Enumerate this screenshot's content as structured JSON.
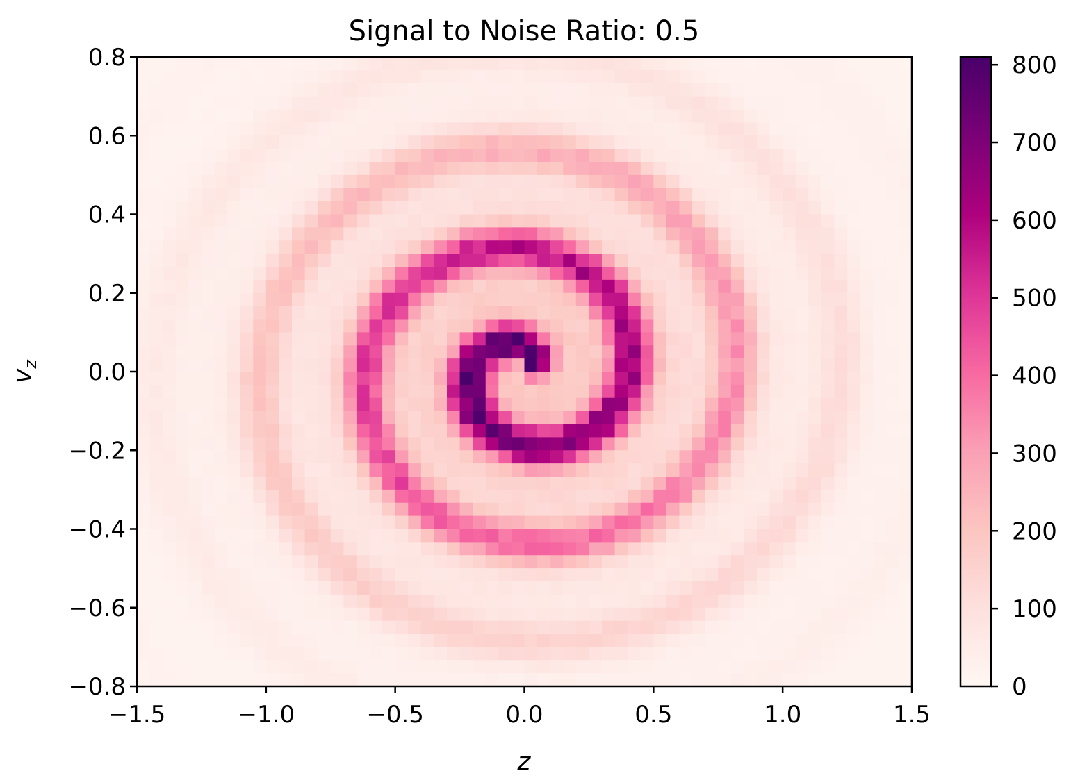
{
  "chart_data": {
    "type": "heatmap",
    "title": "Signal to Noise Ratio: 0.5",
    "xlabel": "z",
    "ylabel": "v_z",
    "ylabel_base": "v",
    "ylabel_sub": "z",
    "xlim": [
      -1.5,
      1.5
    ],
    "ylim": [
      -0.8,
      0.8
    ],
    "x_ticks": [
      -1.5,
      -1.0,
      -0.5,
      0.0,
      0.5,
      1.0,
      1.5
    ],
    "x_tick_labels": [
      "−1.5",
      "−1.0",
      "−0.5",
      "0.0",
      "0.5",
      "1.0",
      "1.5"
    ],
    "y_ticks": [
      0.8,
      0.6,
      0.4,
      0.2,
      0.0,
      -0.2,
      -0.4,
      -0.6,
      -0.8
    ],
    "y_tick_labels": [
      "0.8",
      "0.6",
      "0.4",
      "0.2",
      "0.0",
      "−0.2",
      "−0.4",
      "−0.6",
      "−0.8"
    ],
    "bins": {
      "nx": 60,
      "ny": 48
    },
    "colorbar": {
      "range": [
        0,
        810
      ],
      "ticks": [
        0,
        100,
        200,
        300,
        400,
        500,
        600,
        700,
        800
      ],
      "tick_labels": [
        "0",
        "100",
        "200",
        "300",
        "400",
        "500",
        "600",
        "700",
        "800"
      ],
      "colormap": "RdPu",
      "colors": [
        "#fff7f3",
        "#fde0dd",
        "#fcc5c0",
        "#fa9fb5",
        "#f768a1",
        "#dd3497",
        "#ae017e",
        "#7a0177",
        "#49006a"
      ]
    },
    "structure": {
      "description_values": "counts per (z, v_z) bin forming a phase-space spiral centered at (0,0)",
      "spiral_peak": 810,
      "background": 15
    }
  }
}
